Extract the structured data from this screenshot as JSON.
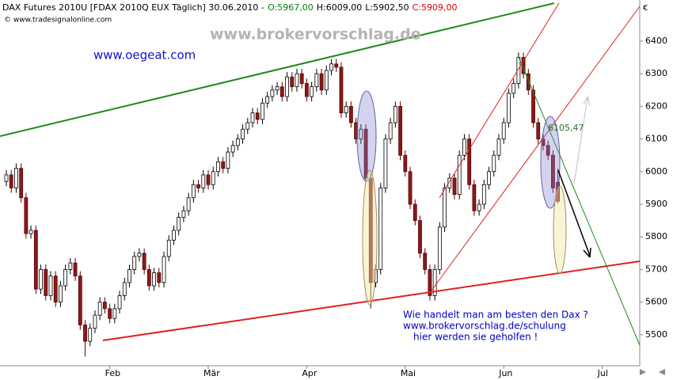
{
  "chart_data": {
    "type": "candlestick",
    "title": "DAX Futures 2010U [FDAX 2010Q EUX  Täglich] 30.06.2010 -",
    "header_values": [
      {
        "text": "O:5967,00",
        "color": "#008000"
      },
      {
        "text": "H:6009,00",
        "color": "#000000"
      },
      {
        "text": "L:5902,50",
        "color": "#000000"
      },
      {
        "text": "C:5909,00",
        "color": "#d00000"
      }
    ],
    "copyright": "© www.tradesignalonline.com",
    "currency": "€",
    "watermark": "www.brokervorschlag.de",
    "site": "www.oegeat.com",
    "annotation": "6105,47",
    "note_lines": [
      "Wie handelt man am besten den Dax ?",
      "www.brokervorschlag.de/schulung",
      "hier werden sie geholfen !"
    ],
    "up_color": "#ffffff",
    "down_color": "#8b1a1a",
    "categories": [
      null,
      null,
      null,
      null,
      null,
      null,
      null,
      null,
      null,
      null,
      null,
      null,
      null,
      null,
      null,
      null,
      null,
      null,
      null,
      null,
      null,
      "Feb",
      null,
      null,
      null,
      null,
      null,
      null,
      null,
      null,
      null,
      null,
      null,
      null,
      null,
      null,
      null,
      null,
      null,
      null,
      null,
      "Mär",
      null,
      null,
      null,
      null,
      null,
      null,
      null,
      null,
      null,
      null,
      null,
      null,
      null,
      null,
      null,
      null,
      null,
      null,
      null,
      "Apr",
      null,
      null,
      null,
      null,
      null,
      null,
      null,
      null,
      null,
      null,
      null,
      null,
      null,
      null,
      null,
      null,
      null,
      null,
      null,
      "Mai",
      null,
      null,
      null,
      null,
      null,
      null,
      null,
      null,
      null,
      null,
      null,
      null,
      null,
      null,
      null,
      null,
      null,
      null,
      null,
      "Jun",
      null,
      null,
      null,
      null,
      null,
      null,
      null,
      null,
      null,
      null,
      null,
      null,
      null,
      null,
      null,
      null,
      null,
      null,
      null,
      "Jul",
      null,
      null,
      null,
      null,
      null,
      null,
      null
    ],
    "open": [
      5970,
      5990,
      5950,
      6010,
      5920,
      5810,
      5820,
      5640,
      5700,
      5620,
      5680,
      5600,
      5650,
      5700,
      5720,
      5680,
      5530,
      5480,
      5520,
      5560,
      5600,
      5580,
      5550,
      5580,
      5620,
      5660,
      5700,
      5740,
      5750,
      5700,
      5650,
      5690,
      5660,
      5740,
      5790,
      5820,
      5860,
      5880,
      5920,
      5960,
      5950,
      5990,
      5960,
      6000,
      6030,
      6010,
      6060,
      6080,
      6100,
      6130,
      6150,
      6180,
      6160,
      6210,
      6230,
      6250,
      6260,
      6230,
      6290,
      6260,
      6300,
      6270,
      6230,
      6260,
      6300,
      6250,
      6310,
      6330,
      6320,
      6180,
      6200,
      6150,
      6100,
      6130,
      5980,
      5660,
      5700,
      5950,
      6100,
      6150,
      6200,
      6050,
      6000,
      5900,
      5850,
      5750,
      5700,
      5620,
      5700,
      5830,
      5950,
      5980,
      5930,
      6050,
      6100,
      5960,
      5880,
      5900,
      5960,
      6000,
      6050,
      6100,
      6150,
      6240,
      6270,
      6350,
      6300,
      6250,
      6150,
      6100,
      6080,
      6050,
      5967,
      null,
      null,
      null,
      null,
      null,
      null,
      null,
      null,
      null,
      null,
      null,
      null,
      null,
      null,
      null,
      null
    ],
    "high": [
      6005,
      6005,
      6025,
      6025,
      5935,
      5835,
      5835,
      5715,
      5715,
      5695,
      5695,
      5665,
      5715,
      5735,
      5735,
      5695,
      5545,
      5535,
      5575,
      5615,
      5615,
      5595,
      5595,
      5635,
      5675,
      5715,
      5755,
      5765,
      5765,
      5715,
      5705,
      5705,
      5755,
      5805,
      5835,
      5875,
      5895,
      5935,
      5975,
      5975,
      6005,
      6005,
      6015,
      6045,
      6045,
      6075,
      6095,
      6115,
      6145,
      6165,
      6195,
      6195,
      6225,
      6245,
      6265,
      6275,
      6275,
      6305,
      6305,
      6315,
      6315,
      6285,
      6275,
      6315,
      6315,
      6325,
      6345,
      6345,
      6335,
      6215,
      6215,
      6165,
      6145,
      6145,
      5995,
      5715,
      5965,
      6115,
      6165,
      6215,
      6215,
      6065,
      6015,
      5915,
      5865,
      5765,
      5715,
      5715,
      5845,
      5965,
      5995,
      5995,
      6065,
      6115,
      6115,
      5975,
      5915,
      5975,
      6015,
      6065,
      6115,
      6165,
      6255,
      6285,
      6365,
      6365,
      6315,
      6265,
      6165,
      6115,
      6095,
      6065,
      6009,
      null,
      null,
      null,
      null,
      null,
      null,
      null,
      null,
      null,
      null,
      null,
      null,
      null,
      null,
      null,
      null
    ],
    "low": [
      5955,
      5935,
      5935,
      5905,
      5795,
      5795,
      5625,
      5625,
      5605,
      5605,
      5585,
      5585,
      5635,
      5685,
      5665,
      5515,
      5433,
      5465,
      5505,
      5545,
      5565,
      5535,
      5535,
      5565,
      5605,
      5645,
      5685,
      5725,
      5685,
      5635,
      5635,
      5645,
      5645,
      5725,
      5775,
      5805,
      5845,
      5865,
      5905,
      5935,
      5935,
      5945,
      5945,
      5985,
      5995,
      5995,
      6045,
      6065,
      6085,
      6115,
      6135,
      6145,
      6145,
      6195,
      6215,
      6235,
      6215,
      6215,
      6245,
      6245,
      6255,
      6215,
      6215,
      6245,
      6235,
      6235,
      6295,
      6305,
      6165,
      6165,
      6135,
      6085,
      6085,
      5965,
      5580,
      5645,
      5685,
      5935,
      6085,
      6135,
      6035,
      5985,
      5885,
      5835,
      5735,
      5685,
      5605,
      5605,
      5685,
      5815,
      5935,
      5915,
      5915,
      6035,
      5945,
      5865,
      5865,
      5885,
      5945,
      5985,
      6035,
      6085,
      6135,
      6225,
      6255,
      6285,
      6235,
      6135,
      6085,
      6065,
      6035,
      5935,
      5902.5,
      null,
      null,
      null,
      null,
      null,
      null,
      null,
      null,
      null,
      null,
      null,
      null,
      null,
      null,
      null,
      null
    ],
    "close": [
      5990,
      5950,
      6010,
      5920,
      5810,
      5820,
      5640,
      5700,
      5620,
      5680,
      5600,
      5650,
      5700,
      5720,
      5680,
      5530,
      5480,
      5520,
      5560,
      5600,
      5580,
      5550,
      5580,
      5620,
      5660,
      5700,
      5740,
      5750,
      5700,
      5650,
      5690,
      5660,
      5740,
      5790,
      5820,
      5860,
      5880,
      5920,
      5960,
      5950,
      5990,
      5960,
      6000,
      6030,
      6010,
      6060,
      6080,
      6100,
      6130,
      6150,
      6180,
      6160,
      6210,
      6230,
      6250,
      6260,
      6230,
      6290,
      6260,
      6300,
      6270,
      6230,
      6260,
      6300,
      6250,
      6310,
      6330,
      6320,
      6180,
      6200,
      6150,
      6100,
      6130,
      5980,
      5660,
      5700,
      5950,
      6100,
      6150,
      6200,
      6050,
      6000,
      5900,
      5850,
      5750,
      5700,
      5620,
      5700,
      5830,
      5950,
      5980,
      5930,
      6050,
      6100,
      5960,
      5880,
      5900,
      5960,
      6000,
      6050,
      6100,
      6150,
      6240,
      6270,
      6350,
      6300,
      6250,
      6150,
      6100,
      6080,
      6050,
      5950,
      5909,
      null,
      null,
      null,
      null,
      null,
      null,
      null,
      null,
      null,
      null,
      null,
      null,
      null,
      null,
      null,
      null
    ],
    "ylim": [
      5405,
      6526
    ],
    "yticks": [
      5500,
      5600,
      5700,
      5800,
      5900,
      6000,
      6100,
      6200,
      6300,
      6400
    ]
  }
}
